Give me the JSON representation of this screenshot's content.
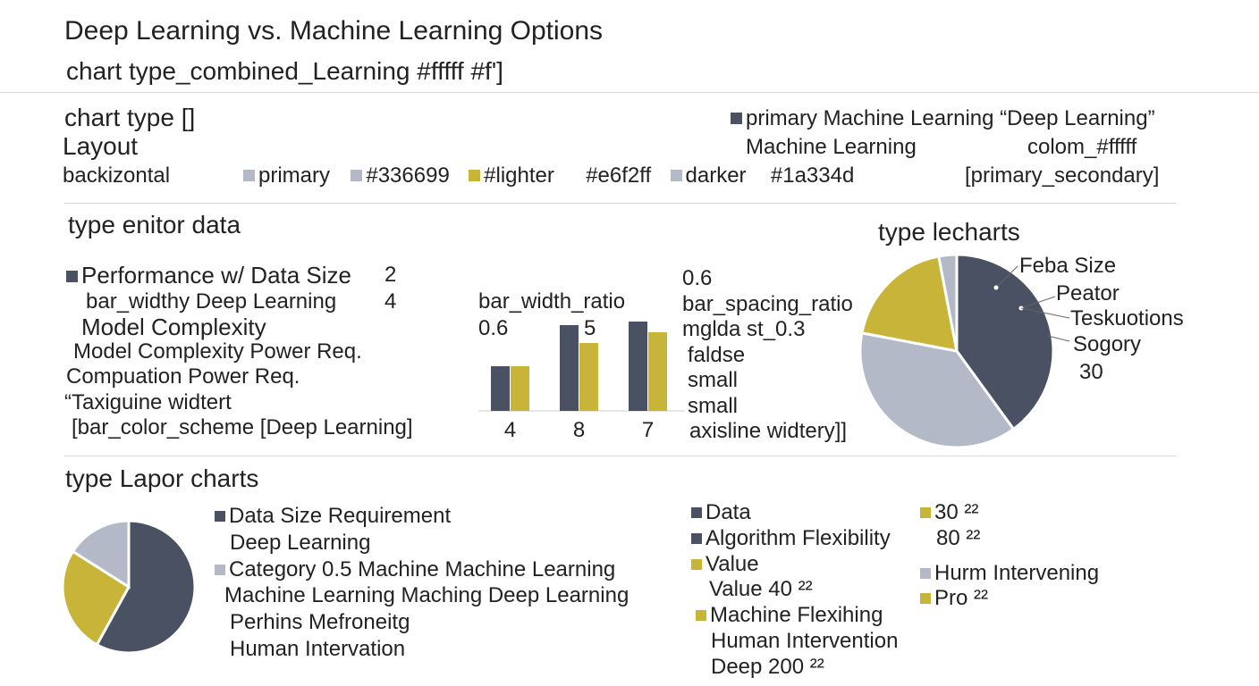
{
  "header": {
    "title": "Deep Learning vs. Machine Learning Options",
    "subtitle": "chart type_combined_Learning #fffff #f']"
  },
  "layout": {
    "chart_type": "chart type []",
    "layout": "Layout",
    "background": "backizontal",
    "palette": [
      {
        "swatch": "#b3b9c6",
        "text": "primary"
      },
      {
        "swatch": "#b3b9c6",
        "text": "#336699"
      },
      {
        "swatch": "#c9b43a",
        "text": "#lighter"
      },
      {
        "swatch": null,
        "text": "#e6f2ff"
      },
      {
        "swatch": "#b3b9c6",
        "text": "darker"
      },
      {
        "swatch": null,
        "text": "#1a334d"
      }
    ],
    "right_line1": "primary Machine Learning “Deep Learning”",
    "right_line2a": "Machine Learning",
    "right_line2b": "colom_#fffff",
    "right_line3": "[primary_secondary]"
  },
  "editor": {
    "heading": "type enitor data",
    "lines": [
      "Performance w/ Data Size",
      "bar_widthy  Deep Learning",
      "Model Complexity",
      "Model Complexity Power Req.",
      "Compuation Power Req.",
      "“Taxiguine widtert",
      "[bar_color_scheme [Deep Learning]"
    ],
    "num1": "2",
    "num2": "4",
    "bar_label": "bar_width_ratio",
    "bar_label_val": "0.6",
    "bar_label_val2": "5",
    "settings": [
      "0.6",
      "bar_spacing_ratio",
      "mglda st_0.3",
      "faldse",
      "small",
      "small",
      "axisline widtery]]"
    ]
  },
  "pie1": {
    "heading": "type lecharts",
    "labels": [
      "Feba Size",
      "Peator",
      "Teskuotions",
      "Sogory",
      "30"
    ]
  },
  "lapor": {
    "heading": "type Lapor charts",
    "legend_left": [
      {
        "swatch": "#4a5163",
        "text": "Data Size Requirement"
      },
      {
        "swatch": null,
        "text": "Deep Learning"
      },
      {
        "swatch": "#b3b9c6",
        "text": "Category  0.5  Machine Machine Learning"
      },
      {
        "swatch": null,
        "text": "Machine Learning Maching Deep Learning"
      },
      {
        "swatch": null,
        "text": "Perhins Mefroneitg"
      },
      {
        "swatch": null,
        "text": "Human Intervation"
      }
    ],
    "legend_mid": [
      {
        "swatch": "#4a5163",
        "text": "Data"
      },
      {
        "swatch": "#4a5163",
        "text": "Algorithm Flexibility"
      },
      {
        "swatch": "#c9b43a",
        "text": "Value"
      },
      {
        "swatch": null,
        "text": "Value 40 ²²"
      },
      {
        "swatch": "#c9b43a",
        "text": "Machine Flexihing"
      },
      {
        "swatch": null,
        "text": "Human Intervention"
      },
      {
        "swatch": null,
        "text": "Deep 200 ²²"
      }
    ],
    "legend_right": [
      {
        "swatch": "#c9b43a",
        "text": "30 ²²"
      },
      {
        "swatch": null,
        "text": "80 ²²"
      },
      {
        "swatch": "#b3b9c6",
        "text": "Hurm Intervening"
      },
      {
        "swatch": "#c9b43a",
        "text": "Pro ²²"
      }
    ]
  },
  "colors": {
    "dark": "#4a5163",
    "gold": "#c9b43a",
    "gray": "#b3b9c6"
  },
  "chart_data": [
    {
      "type": "bar",
      "categories": [
        "4",
        "8",
        "7"
      ],
      "series": [
        {
          "values": [
            5.0,
            9.6,
            10.0
          ],
          "color": "#4a5163"
        },
        {
          "values": [
            5.0,
            7.6,
            8.8
          ],
          "color": "#c9b43a"
        }
      ],
      "ylim": [
        0,
        11
      ]
    },
    {
      "type": "pie",
      "slices": [
        {
          "value": 40,
          "color": "#4a5163"
        },
        {
          "value": 38,
          "color": "#b3b9c6"
        },
        {
          "value": 19,
          "color": "#c9b43a"
        },
        {
          "value": 3,
          "color": "#b3b9c6"
        }
      ],
      "start_angle": 0
    },
    {
      "type": "pie",
      "slices": [
        {
          "value": 58,
          "color": "#4a5163"
        },
        {
          "value": 26,
          "color": "#c9b43a"
        },
        {
          "value": 16,
          "color": "#b3b9c6"
        }
      ],
      "start_angle": 0
    }
  ]
}
